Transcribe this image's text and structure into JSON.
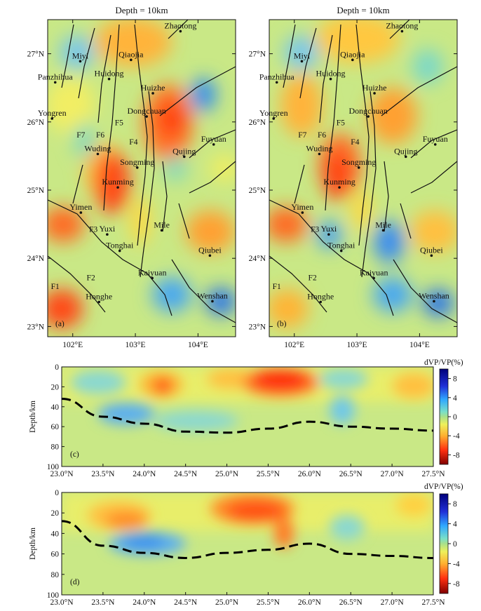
{
  "colorbar": {
    "label": "dVP/VP(%)",
    "ticks": [
      "8",
      "4",
      "0",
      "-4",
      "-8"
    ],
    "tick_values": [
      8,
      4,
      0,
      -4,
      -8
    ],
    "range": [
      -10,
      10
    ]
  },
  "chart_data": [
    {
      "type": "heatmap",
      "panel": "(a)",
      "title": "Depth = 10km",
      "xlim": [
        101.6,
        104.6
      ],
      "ylim": [
        22.85,
        27.5
      ],
      "xticks": [
        102,
        103,
        104
      ],
      "xtick_labels": [
        "102°E",
        "103°E",
        "104°E"
      ],
      "yticks": [
        23,
        24,
        25,
        26,
        27
      ],
      "ytick_labels": [
        "23°N",
        "24°N",
        "25°N",
        "26°N",
        "27°N"
      ],
      "cities": [
        {
          "name": "Zhaotong",
          "lon": 103.72,
          "lat": 27.33
        },
        {
          "name": "Miyi",
          "lon": 102.12,
          "lat": 26.89
        },
        {
          "name": "Qiaojia",
          "lon": 102.93,
          "lat": 26.91
        },
        {
          "name": "Panzhihua",
          "lon": 101.72,
          "lat": 26.58
        },
        {
          "name": "Huidong",
          "lon": 102.58,
          "lat": 26.63
        },
        {
          "name": "Huizhe",
          "lon": 103.28,
          "lat": 26.42
        },
        {
          "name": "Dongchuan",
          "lon": 103.18,
          "lat": 26.08
        },
        {
          "name": "Yongren",
          "lon": 101.67,
          "lat": 26.05
        },
        {
          "name": "Fuyuan",
          "lon": 104.25,
          "lat": 25.67
        },
        {
          "name": "Wuding",
          "lon": 102.4,
          "lat": 25.53
        },
        {
          "name": "Songming",
          "lon": 103.03,
          "lat": 25.33
        },
        {
          "name": "Qujing",
          "lon": 103.78,
          "lat": 25.49
        },
        {
          "name": "Kunming",
          "lon": 102.72,
          "lat": 25.04
        },
        {
          "name": "Yimen",
          "lon": 102.13,
          "lat": 24.67
        },
        {
          "name": "Yuxi",
          "lon": 102.55,
          "lat": 24.35
        },
        {
          "name": "Mile",
          "lon": 103.42,
          "lat": 24.41
        },
        {
          "name": "Tonghai",
          "lon": 102.75,
          "lat": 24.11
        },
        {
          "name": "Qiubei",
          "lon": 104.19,
          "lat": 24.04
        },
        {
          "name": "Kaiyuan",
          "lon": 103.27,
          "lat": 23.71
        },
        {
          "name": "Honghe",
          "lon": 102.42,
          "lat": 23.36
        },
        {
          "name": "Wenshan",
          "lon": 104.23,
          "lat": 23.37
        }
      ],
      "fault_labels": [
        {
          "name": "F1",
          "lon": 101.72,
          "lat": 23.55
        },
        {
          "name": "F2",
          "lon": 102.29,
          "lat": 23.68
        },
        {
          "name": "F3",
          "lon": 102.33,
          "lat": 24.39
        },
        {
          "name": "F4",
          "lon": 102.97,
          "lat": 25.67
        },
        {
          "name": "F5",
          "lon": 102.74,
          "lat": 25.95
        },
        {
          "name": "F6",
          "lon": 102.44,
          "lat": 25.77
        },
        {
          "name": "F7",
          "lon": 102.13,
          "lat": 25.77
        }
      ]
    },
    {
      "type": "heatmap",
      "panel": "(b)",
      "title": "Depth = 10km",
      "xlim": [
        101.6,
        104.6
      ],
      "ylim": [
        22.85,
        27.5
      ],
      "xticks": [
        102,
        103,
        104
      ],
      "xtick_labels": [
        "102°E",
        "103°E",
        "104°E"
      ],
      "yticks": [
        23,
        24,
        25,
        26,
        27
      ],
      "ytick_labels": [
        "23°N",
        "24°N",
        "25°N",
        "26°N",
        "27°N"
      ]
    },
    {
      "type": "heatmap",
      "panel": "(c)",
      "ylabel": "Depth/km",
      "xlim": [
        23.0,
        27.5
      ],
      "ylim": [
        100,
        0
      ],
      "xticks": [
        23.0,
        23.5,
        24.0,
        24.5,
        25.0,
        25.5,
        26.0,
        26.5,
        27.0,
        27.5
      ],
      "xtick_labels": [
        "23.0°N",
        "23.5°N",
        "24.0°N",
        "24.5°N",
        "25.0°N",
        "25.5°N",
        "26.0°N",
        "26.5°N",
        "27.0°N",
        "27.5°N"
      ],
      "yticks": [
        0,
        20,
        40,
        60,
        80,
        100
      ],
      "ytick_labels": [
        "0",
        "20",
        "40",
        "60",
        "80",
        "100"
      ],
      "moho": {
        "x": [
          23.0,
          23.5,
          24.0,
          24.5,
          25.0,
          25.5,
          26.0,
          26.5,
          27.0,
          27.5
        ],
        "y": [
          32,
          50,
          57,
          65,
          66,
          62,
          55,
          60,
          62,
          64
        ]
      }
    },
    {
      "type": "heatmap",
      "panel": "(d)",
      "ylabel": "Depth/km",
      "xlim": [
        23.0,
        27.5
      ],
      "ylim": [
        100,
        0
      ],
      "xticks": [
        23.0,
        23.5,
        24.0,
        24.5,
        25.0,
        25.5,
        26.0,
        26.5,
        27.0,
        27.5
      ],
      "xtick_labels": [
        "23.0°N",
        "23.5°N",
        "24.0°N",
        "24.5°N",
        "25.0°N",
        "25.5°N",
        "26.0°N",
        "26.5°N",
        "27.0°N",
        "27.5°N"
      ],
      "yticks": [
        0,
        20,
        40,
        60,
        80,
        100
      ],
      "ytick_labels": [
        "0",
        "20",
        "40",
        "60",
        "80",
        "100"
      ],
      "moho": {
        "x": [
          23.0,
          23.5,
          24.0,
          24.5,
          25.0,
          25.5,
          26.0,
          26.5,
          27.0,
          27.5
        ],
        "y": [
          28,
          52,
          59,
          64,
          59,
          56,
          50,
          60,
          62,
          64
        ]
      }
    }
  ]
}
